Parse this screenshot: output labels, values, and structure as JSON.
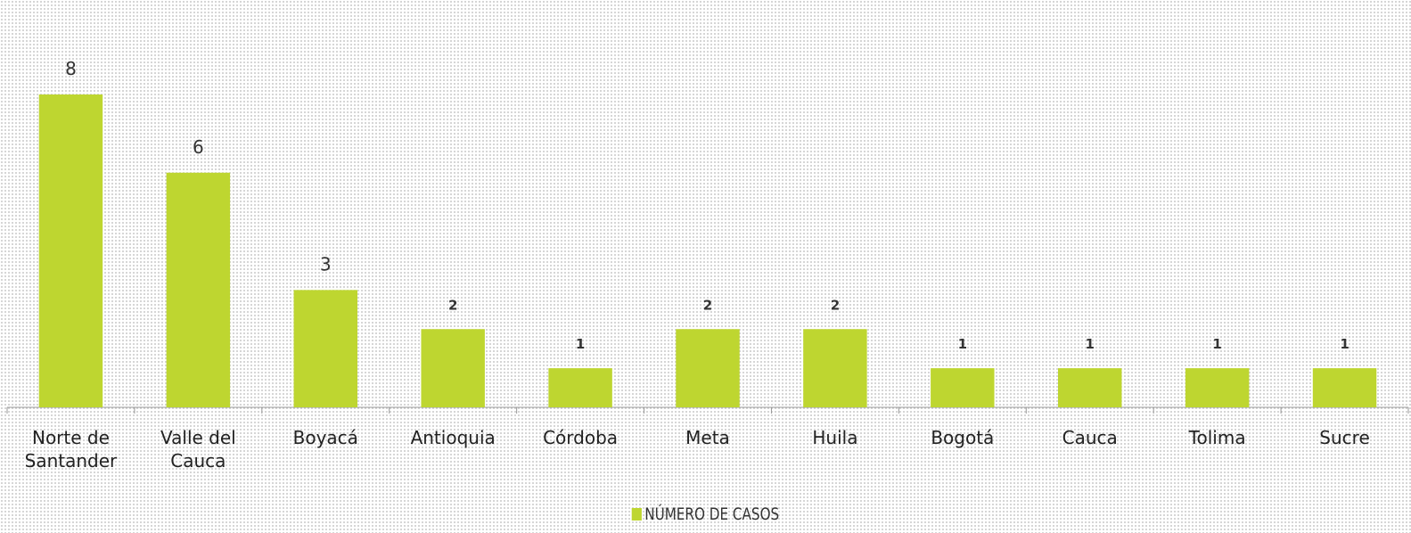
{
  "chart_data": {
    "type": "bar",
    "categories": [
      "Norte de Santander",
      "Valle del Cauca",
      "Boyacá",
      "Antioquia",
      "Córdoba",
      "Meta",
      "Huila",
      "Bogotá",
      "Cauca",
      "Tolima",
      "Sucre"
    ],
    "series": [
      {
        "name": "NÚMERO DE CASOS",
        "color": "#bed630",
        "values": [
          8,
          6,
          3,
          2,
          1,
          2,
          2,
          1,
          1,
          1,
          1
        ]
      }
    ],
    "ylim": [
      0,
      8
    ],
    "legend": "bottom"
  }
}
